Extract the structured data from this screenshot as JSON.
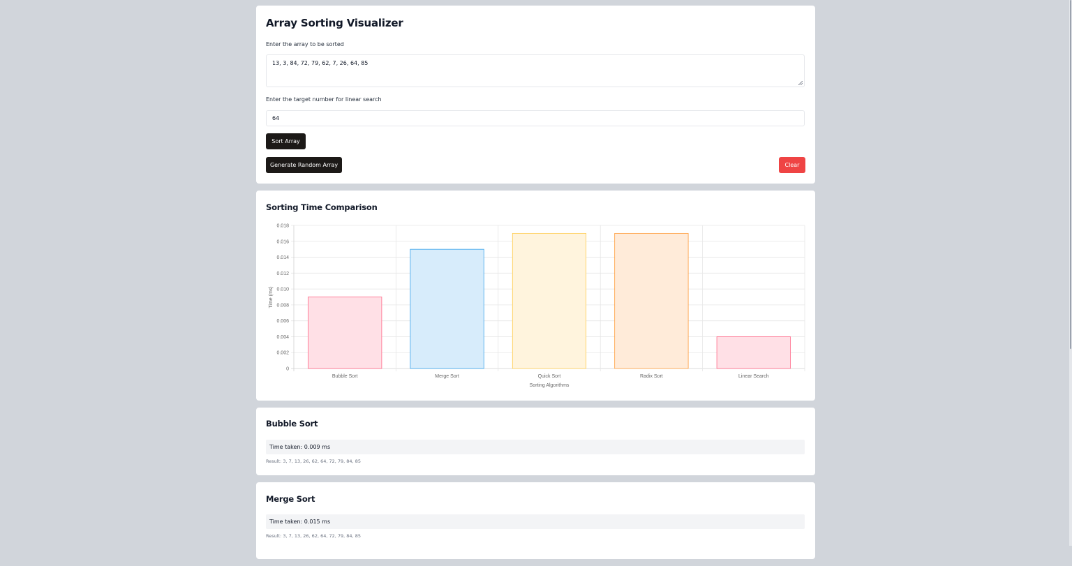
{
  "header": {
    "title": "Array Sorting Visualizer"
  },
  "form": {
    "array_label": "Enter the array to be sorted",
    "array_value": "13, 3, 84, 72, 79, 62, 7, 26, 64, 85",
    "target_label": "Enter the target number for linear search",
    "target_value": "64",
    "sort_button": "Sort Array",
    "random_button": "Generate Random Array",
    "clear_button": "Clear"
  },
  "chart_section": {
    "title": "Sorting Time Comparison"
  },
  "chart_data": {
    "type": "bar",
    "title": "",
    "xlabel": "Sorting Algorithms",
    "ylabel": "Time (ms)",
    "categories": [
      "Bubble Sort",
      "Merge Sort",
      "Quick Sort",
      "Radix Sort",
      "Linear Search"
    ],
    "values": [
      0.009,
      0.015,
      0.017,
      0.017,
      0.004
    ],
    "ylim": [
      0,
      0.018
    ],
    "yticks": [
      "0",
      "0.002",
      "0.004",
      "0.006",
      "0.008",
      "0.010",
      "0.012",
      "0.014",
      "0.016",
      "0.018"
    ],
    "grid": true,
    "colors": {
      "fill": [
        "#ffe0e6",
        "#d7ecfb",
        "#fff4dd",
        "#ffebd9",
        "#ffe0e6"
      ],
      "stroke": [
        "#ff6384",
        "#36a2eb",
        "#ffce56",
        "#ff9f40",
        "#ff6384"
      ]
    }
  },
  "results": [
    {
      "name": "Bubble Sort",
      "time": "Time taken: 0.009 ms",
      "result": "Result: 3, 7, 13, 26, 62, 64, 72, 79, 84, 85"
    },
    {
      "name": "Merge Sort",
      "time": "Time taken: 0.015 ms",
      "result": "Result: 3, 7, 13, 26, 62, 64, 72, 79, 84, 85"
    }
  ]
}
